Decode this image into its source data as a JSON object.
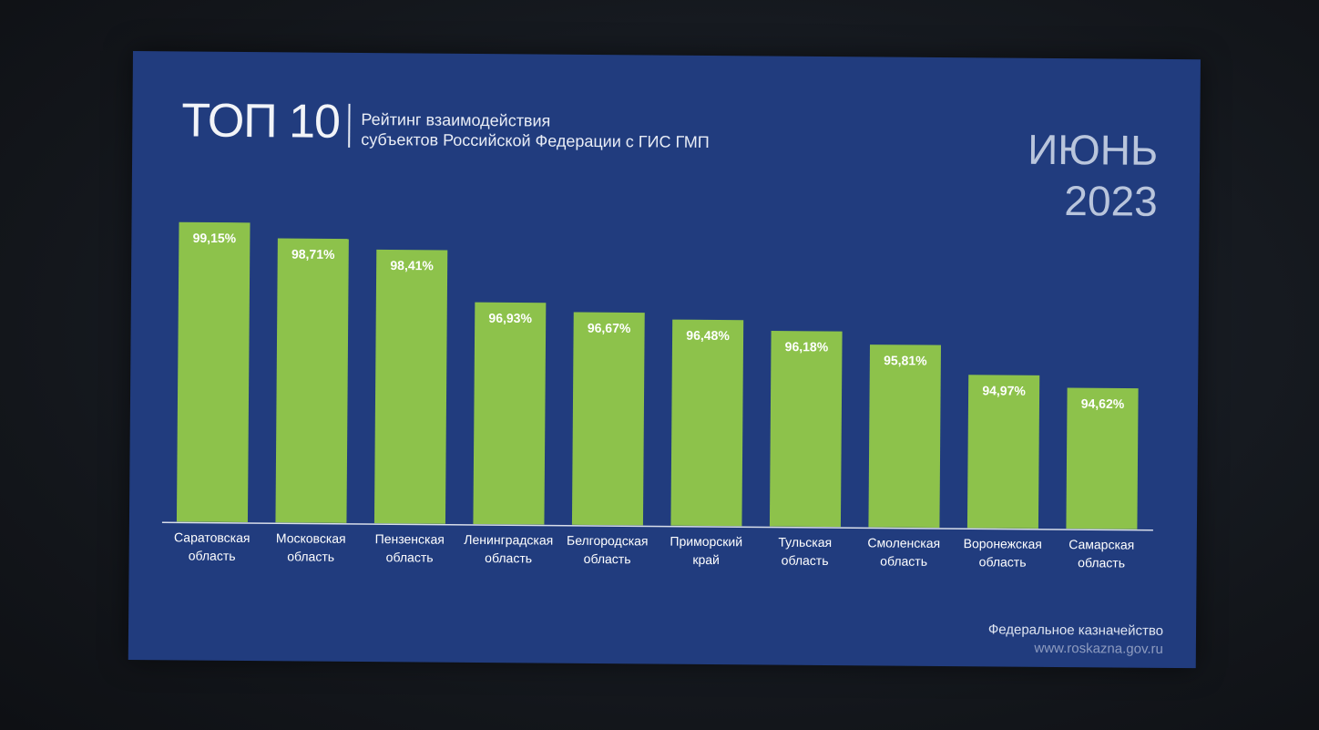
{
  "header": {
    "top_label": "ТОП 10",
    "subtitle_line1": "Рейтинг взаимодействия",
    "subtitle_line2": "субъектов Российской Федерации с ГИС ГМП"
  },
  "period": {
    "month": "ИЮНЬ",
    "year": "2023"
  },
  "footer": {
    "org": "Федеральное казначейство",
    "url": "www.roskazna.gov.ru"
  },
  "colors": {
    "panel": "#213c7e",
    "bar": "#8dc24b",
    "axis": "#d8deea"
  },
  "chart_data": {
    "type": "bar",
    "title": "",
    "xlabel": "",
    "ylabel": "",
    "ylim": [
      90.6,
      99.6
    ],
    "grid": false,
    "categories": [
      [
        "Саратовская",
        "область"
      ],
      [
        "Московская",
        "область"
      ],
      [
        "Пензенская",
        "область"
      ],
      [
        "Ленинградская",
        "область"
      ],
      [
        "Белгородская",
        "область"
      ],
      [
        "Приморский",
        "край"
      ],
      [
        "Тульская",
        "область"
      ],
      [
        "Смоленская",
        "область"
      ],
      [
        "Воронежская",
        "область"
      ],
      [
        "Самарская",
        "область"
      ]
    ],
    "values": [
      99.15,
      98.71,
      98.41,
      96.93,
      96.67,
      96.48,
      96.18,
      95.81,
      94.97,
      94.62
    ],
    "value_labels": [
      "99,15%",
      "98,71%",
      "98,41%",
      "96,93%",
      "96,67%",
      "96,48%",
      "96,18%",
      "95,81%",
      "94,97%",
      "94,62%"
    ]
  }
}
